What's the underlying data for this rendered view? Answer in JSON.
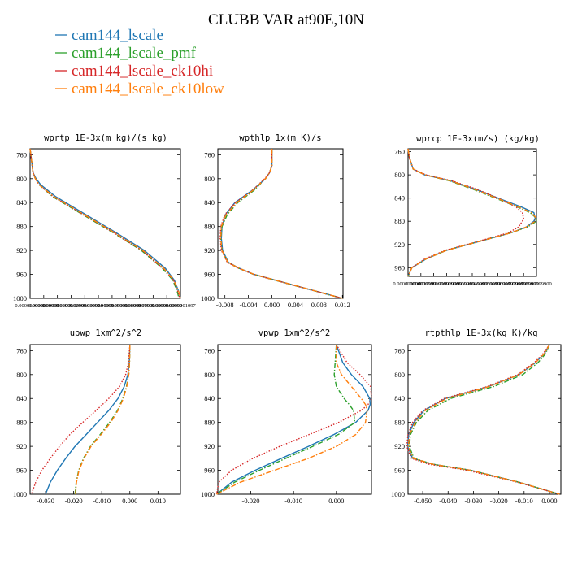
{
  "title": "CLUBB VAR at90E,10N",
  "legend": [
    {
      "label": "cam144_lscale",
      "color": "#1f77b4",
      "dash": "solid"
    },
    {
      "label": "cam144_lscale_pmf",
      "color": "#2ca02c",
      "dash": "dashdot"
    },
    {
      "label": "cam144_lscale_ck10hi",
      "color": "#d62728",
      "dash": "dotted"
    },
    {
      "label": "cam144_lscale_ck10low",
      "color": "#ff7f0e",
      "dash": "dashdot"
    }
  ],
  "chart_data": [
    {
      "type": "line",
      "title": "wprtp  1E-3x(m kg)/(s kg)",
      "xticks": [
        "0.0000000000",
        "0.0000000999",
        "0.0000001999",
        "0.0000002999",
        "0.0000003999",
        "0.0000004999",
        "0.0000005999",
        "0.0000006999",
        "0.0000007999",
        "0.0000008999",
        "0.0000009999",
        "0.0000001097"
      ],
      "xlim": [
        0,
        1
      ],
      "yticks": [
        "760",
        "800",
        "840",
        "880",
        "920",
        "960",
        "1000"
      ],
      "ylim": [
        750,
        1000
      ],
      "y": [
        750,
        790,
        800,
        810,
        830,
        860,
        890,
        920,
        950,
        970,
        990,
        1000
      ],
      "series": [
        {
          "name": "cam144_lscale",
          "values": [
            0.0,
            0.02,
            0.04,
            0.07,
            0.17,
            0.37,
            0.57,
            0.76,
            0.9,
            0.96,
            0.99,
            1.0
          ]
        },
        {
          "name": "cam144_lscale_pmf",
          "values": [
            0.0,
            0.02,
            0.035,
            0.06,
            0.15,
            0.35,
            0.55,
            0.74,
            0.88,
            0.95,
            0.98,
            0.99
          ]
        },
        {
          "name": "cam144_lscale_ck10hi",
          "values": [
            0.0,
            0.02,
            0.035,
            0.06,
            0.155,
            0.355,
            0.555,
            0.745,
            0.885,
            0.955,
            0.985,
            0.995
          ]
        },
        {
          "name": "cam144_lscale_ck10low",
          "values": [
            0.0,
            0.02,
            0.035,
            0.06,
            0.16,
            0.36,
            0.56,
            0.75,
            0.89,
            0.957,
            0.99,
            1.0
          ]
        }
      ]
    },
    {
      "type": "line",
      "title": "wpthlp  1x(m K)/s",
      "xticks": [
        "-0.008",
        "-0.004",
        "0.000",
        "0.004",
        "0.008",
        "0.012"
      ],
      "xlim": [
        -0.0092,
        0.0121
      ],
      "yticks": [
        "760",
        "800",
        "840",
        "880",
        "920",
        "960",
        "1000"
      ],
      "ylim": [
        750,
        1000
      ],
      "y": [
        750,
        778,
        790,
        800,
        820,
        840,
        860,
        880,
        900,
        920,
        940,
        950,
        960,
        980,
        1000
      ],
      "series": [
        {
          "name": "cam144_lscale",
          "values": [
            0.0,
            0.0,
            -0.0004,
            -0.0011,
            -0.0034,
            -0.0063,
            -0.0079,
            -0.0085,
            -0.0086,
            -0.0084,
            -0.0074,
            -0.0055,
            -0.003,
            0.0045,
            0.012
          ]
        },
        {
          "name": "cam144_lscale_pmf",
          "values": [
            0.0,
            0.0,
            -0.0004,
            -0.0011,
            -0.0031,
            -0.0058,
            -0.0076,
            -0.0085,
            -0.0087,
            -0.0085,
            -0.0075,
            -0.0056,
            -0.0031,
            0.0044,
            0.012
          ]
        },
        {
          "name": "cam144_lscale_ck10hi",
          "values": [
            0.0,
            0.0,
            -0.0004,
            -0.0012,
            -0.0034,
            -0.0062,
            -0.008,
            -0.0087,
            -0.0088,
            -0.0086,
            -0.0076,
            -0.0056,
            -0.0031,
            0.0044,
            0.012
          ]
        },
        {
          "name": "cam144_lscale_ck10low",
          "values": [
            0.0,
            0.0,
            -0.0004,
            -0.0011,
            -0.0033,
            -0.006,
            -0.0078,
            -0.0086,
            -0.0087,
            -0.0085,
            -0.0075,
            -0.0055,
            -0.003,
            0.0045,
            0.012
          ]
        }
      ]
    },
    {
      "type": "line",
      "title": "wprcp  1E-3x(m/s) (kg/kg)",
      "xticks": [
        "0.0000000000",
        "0.0000009999",
        "0.0000019999",
        "0.0000029999",
        "0.0000039999",
        "0.0000049999",
        "0.0000059999",
        "0.0000069999",
        "0.0000079999",
        "0.0000089999",
        "0.0000099900"
      ],
      "xlim": [
        0,
        1
      ],
      "yticks": [
        "760",
        "800",
        "840",
        "880",
        "920",
        "960"
      ],
      "ylim": [
        755,
        975
      ],
      "y": [
        755,
        770,
        790,
        800,
        810,
        825,
        840,
        855,
        865,
        875,
        880,
        890,
        900,
        915,
        930,
        945,
        960,
        970,
        975
      ],
      "series": [
        {
          "name": "cam144_lscale",
          "values": [
            0.0,
            0.01,
            0.04,
            0.13,
            0.33,
            0.53,
            0.7,
            0.88,
            0.98,
            0.99,
            0.98,
            0.92,
            0.8,
            0.55,
            0.3,
            0.14,
            0.03,
            0.01,
            0.0
          ]
        },
        {
          "name": "cam144_lscale_pmf",
          "values": [
            0.0,
            0.01,
            0.04,
            0.13,
            0.32,
            0.51,
            0.68,
            0.85,
            0.95,
            1.0,
            1.0,
            0.93,
            0.8,
            0.55,
            0.3,
            0.14,
            0.03,
            0.01,
            0.0
          ]
        },
        {
          "name": "cam144_lscale_ck10hi",
          "values": [
            0.0,
            0.01,
            0.04,
            0.14,
            0.34,
            0.54,
            0.7,
            0.84,
            0.89,
            0.9,
            0.89,
            0.86,
            0.78,
            0.54,
            0.29,
            0.13,
            0.03,
            0.01,
            0.0
          ]
        },
        {
          "name": "cam144_lscale_ck10low",
          "values": [
            0.0,
            0.01,
            0.04,
            0.13,
            0.33,
            0.52,
            0.69,
            0.86,
            0.96,
            1.0,
            0.99,
            0.92,
            0.8,
            0.55,
            0.3,
            0.14,
            0.03,
            0.01,
            0.0
          ]
        }
      ]
    },
    {
      "type": "line",
      "title": "upwp  1xm^2/s^2",
      "xticks": [
        "-0.030",
        "-0.020",
        "-0.010",
        "0.000",
        "0.010"
      ],
      "xlim": [
        -0.0355,
        0.018
      ],
      "yticks": [
        "760",
        "800",
        "840",
        "880",
        "920",
        "960",
        "1000"
      ],
      "ylim": [
        750,
        1000
      ],
      "y": [
        750,
        780,
        800,
        820,
        840,
        860,
        880,
        900,
        920,
        940,
        960,
        980,
        1000
      ],
      "series": [
        {
          "name": "cam144_lscale",
          "values": [
            0.0,
            -0.0002,
            -0.0007,
            -0.002,
            -0.0042,
            -0.0075,
            -0.0115,
            -0.0155,
            -0.0195,
            -0.0228,
            -0.0258,
            -0.0283,
            -0.03
          ]
        },
        {
          "name": "cam144_lscale_pmf",
          "values": [
            0.0,
            -0.0001,
            -0.0004,
            -0.0012,
            -0.0025,
            -0.0044,
            -0.0072,
            -0.0105,
            -0.014,
            -0.0165,
            -0.0182,
            -0.0191,
            -0.0195
          ]
        },
        {
          "name": "cam144_lscale_ck10hi",
          "values": [
            0.0,
            -0.0005,
            -0.0015,
            -0.0037,
            -0.0075,
            -0.012,
            -0.0168,
            -0.0213,
            -0.025,
            -0.0283,
            -0.0313,
            -0.0335,
            -0.035
          ]
        },
        {
          "name": "cam144_lscale_ck10low",
          "values": [
            0.0,
            -0.0001,
            -0.0004,
            -0.0011,
            -0.0023,
            -0.0042,
            -0.0068,
            -0.0102,
            -0.0138,
            -0.0163,
            -0.0181,
            -0.019,
            -0.0193
          ]
        }
      ]
    },
    {
      "type": "line",
      "title": "vpwp  1xm^2/s^2",
      "xticks": [
        "-0.020",
        "-0.010",
        "0.000"
      ],
      "xlim": [
        -0.0277,
        0.0082
      ],
      "yticks": [
        "760",
        "800",
        "840",
        "880",
        "920",
        "960",
        "1000"
      ],
      "ylim": [
        750,
        1000
      ],
      "y": [
        750,
        780,
        800,
        820,
        840,
        850,
        860,
        880,
        900,
        920,
        940,
        960,
        980,
        1000
      ],
      "series": [
        {
          "name": "cam144_lscale",
          "values": [
            0.0,
            0.0015,
            0.0035,
            0.0062,
            0.0078,
            0.0079,
            0.0074,
            0.0045,
            -0.0005,
            -0.0065,
            -0.0128,
            -0.019,
            -0.0245,
            -0.028
          ]
        },
        {
          "name": "cam144_lscale_pmf",
          "values": [
            0.0,
            -0.0003,
            -0.0005,
            0.0,
            0.0018,
            0.003,
            0.004,
            0.0043,
            0.0005,
            -0.0055,
            -0.0118,
            -0.018,
            -0.0238,
            -0.028
          ]
        },
        {
          "name": "cam144_lscale_ck10hi",
          "values": [
            0.0,
            0.0025,
            0.0055,
            0.008,
            0.0082,
            0.0074,
            0.0058,
            0.0005,
            -0.0063,
            -0.0132,
            -0.0195,
            -0.0245,
            -0.0275,
            -0.028
          ]
        },
        {
          "name": "cam144_lscale_ck10low",
          "values": [
            0.0,
            0.0,
            0.0012,
            0.0035,
            0.0058,
            0.0068,
            0.0072,
            0.0068,
            0.0046,
            0.0,
            -0.0065,
            -0.0145,
            -0.0225,
            -0.028
          ]
        }
      ]
    },
    {
      "type": "line",
      "title": "rtpthlp  1E-3x(kg K)/kg",
      "xticks": [
        "-0.050",
        "-0.040",
        "-0.030",
        "-0.020",
        "-0.010",
        "0.000"
      ],
      "xlim": [
        -0.0558,
        0.0045
      ],
      "yticks": [
        "760",
        "800",
        "840",
        "880",
        "920",
        "960",
        "1000"
      ],
      "ylim": [
        750,
        1000
      ],
      "y": [
        750,
        765,
        780,
        800,
        820,
        840,
        860,
        880,
        900,
        920,
        940,
        950,
        960,
        980,
        1000
      ],
      "series": [
        {
          "name": "cam144_lscale",
          "values": [
            0.0,
            -0.002,
            -0.0055,
            -0.012,
            -0.024,
            -0.041,
            -0.0495,
            -0.0535,
            -0.0555,
            -0.056,
            -0.054,
            -0.046,
            -0.031,
            -0.012,
            0.004
          ]
        },
        {
          "name": "cam144_lscale_pmf",
          "values": [
            0.0,
            -0.0015,
            -0.0045,
            -0.0105,
            -0.022,
            -0.039,
            -0.048,
            -0.0525,
            -0.0548,
            -0.0553,
            -0.0535,
            -0.0458,
            -0.031,
            -0.012,
            0.004
          ]
        },
        {
          "name": "cam144_lscale_ck10hi",
          "values": [
            0.0,
            -0.0025,
            -0.006,
            -0.0125,
            -0.0245,
            -0.0415,
            -0.05,
            -0.054,
            -0.0558,
            -0.0563,
            -0.0545,
            -0.0475,
            -0.0325,
            -0.0125,
            0.004
          ]
        },
        {
          "name": "cam144_lscale_ck10low",
          "values": [
            0.0,
            -0.002,
            -0.0055,
            -0.012,
            -0.0238,
            -0.0405,
            -0.049,
            -0.053,
            -0.0552,
            -0.0557,
            -0.0538,
            -0.046,
            -0.031,
            -0.012,
            0.004
          ]
        }
      ]
    }
  ]
}
